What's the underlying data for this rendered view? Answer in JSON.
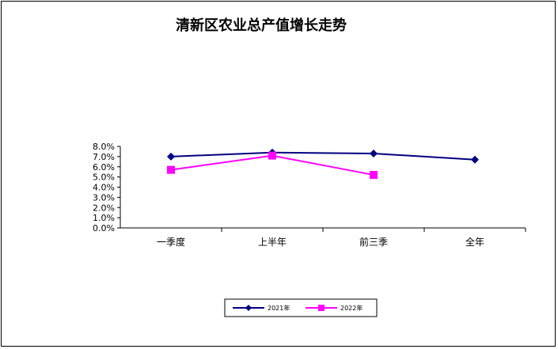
{
  "chart_data": {
    "type": "line",
    "title": "清新区农业总产值增长走势",
    "categories": [
      "一季度",
      "上半年",
      "前三季",
      "全年"
    ],
    "series": [
      {
        "name": "2021年",
        "values": [
          7.0,
          7.4,
          7.3,
          6.7
        ],
        "color": "#000080",
        "marker": "diamond"
      },
      {
        "name": "2022年",
        "values": [
          5.7,
          7.1,
          5.2,
          null
        ],
        "color": "#FF00FF",
        "marker": "square"
      }
    ],
    "ylim": [
      0,
      8
    ],
    "yticks": [
      "0.0%",
      "1.0%",
      "2.0%",
      "3.0%",
      "4.0%",
      "5.0%",
      "6.0%",
      "7.0%",
      "8.0%"
    ],
    "grid": false,
    "legend": "bottom"
  }
}
